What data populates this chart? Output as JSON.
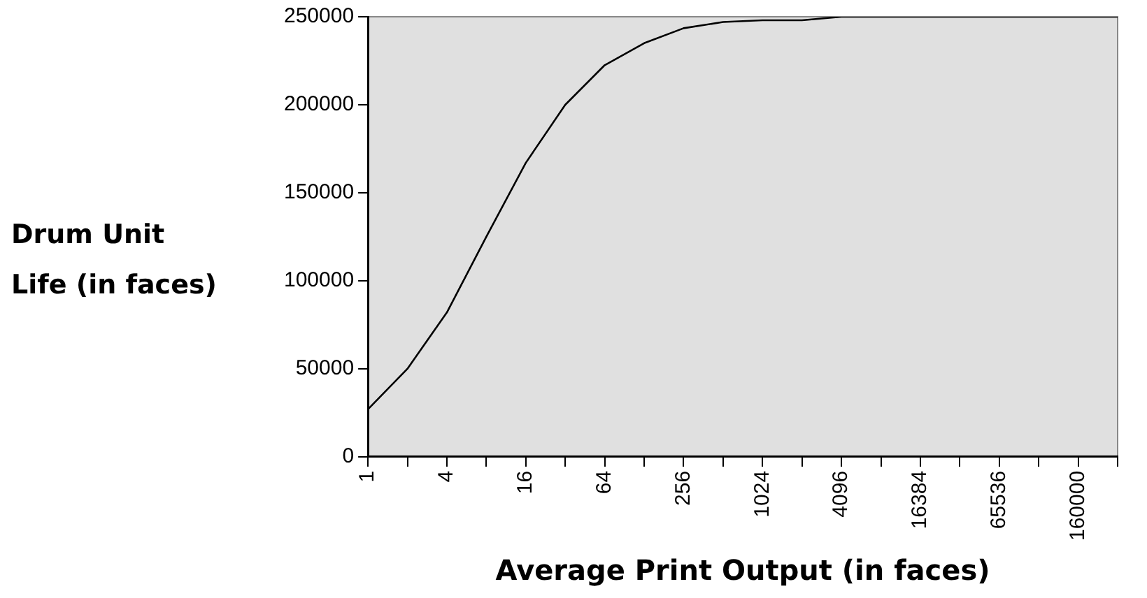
{
  "chart_data": {
    "type": "line",
    "xlabel": "Average Print Output (in faces)",
    "ylabel": "Drum Unit Life (in faces)",
    "categories": [
      "1",
      null,
      "4",
      null,
      "16",
      null,
      "64",
      null,
      "256",
      null,
      "1024",
      null,
      "4096",
      null,
      "16384",
      null,
      "65536",
      null,
      "160000",
      null
    ],
    "series": [
      {
        "color": "#000000",
        "values": [
          27000,
          50000,
          82000,
          125000,
          167000,
          200000,
          222500,
          235000,
          243500,
          247000,
          248000,
          248000,
          250000,
          250000,
          250000,
          250000,
          250000,
          250000,
          250000,
          250000
        ]
      }
    ],
    "ylim": [
      0,
      250000
    ],
    "yticks": [
      0,
      50000,
      100000,
      150000,
      200000,
      250000
    ],
    "grid": false,
    "legend": false,
    "marker": "none",
    "line_style": "solid"
  }
}
